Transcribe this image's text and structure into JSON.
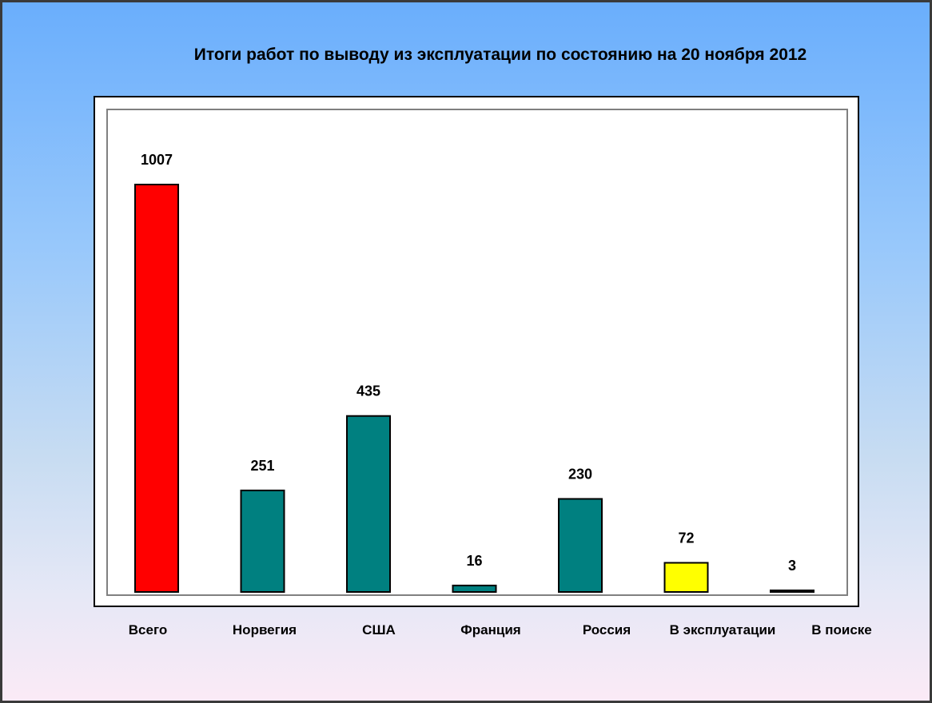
{
  "chart_data": {
    "type": "bar",
    "title": "Итоги работ по выводу из эксплуатации по состоянию на 20 ноября 2012",
    "xlabel": "",
    "ylabel": "",
    "ylim": [
      0,
      1007
    ],
    "grid": false,
    "legend": "none",
    "categories": [
      "Всего",
      "Норвегия",
      "США",
      "Франция",
      "Россия",
      "В эксплуатации",
      "В поиске"
    ],
    "values": [
      1007,
      251,
      435,
      16,
      230,
      72,
      3
    ],
    "bar_colors": [
      "#ff0000",
      "#008080",
      "#008080",
      "#008080",
      "#008080",
      "#ffff00",
      "#008080"
    ],
    "data_labels": [
      "1007",
      "251",
      "435",
      "16",
      "230",
      "72",
      "3"
    ]
  },
  "colors": {
    "frame_background": "#ffffff",
    "plot_border": "#808080",
    "background_top": "#6aaefc",
    "background_bottom": "#fbeaf6"
  }
}
